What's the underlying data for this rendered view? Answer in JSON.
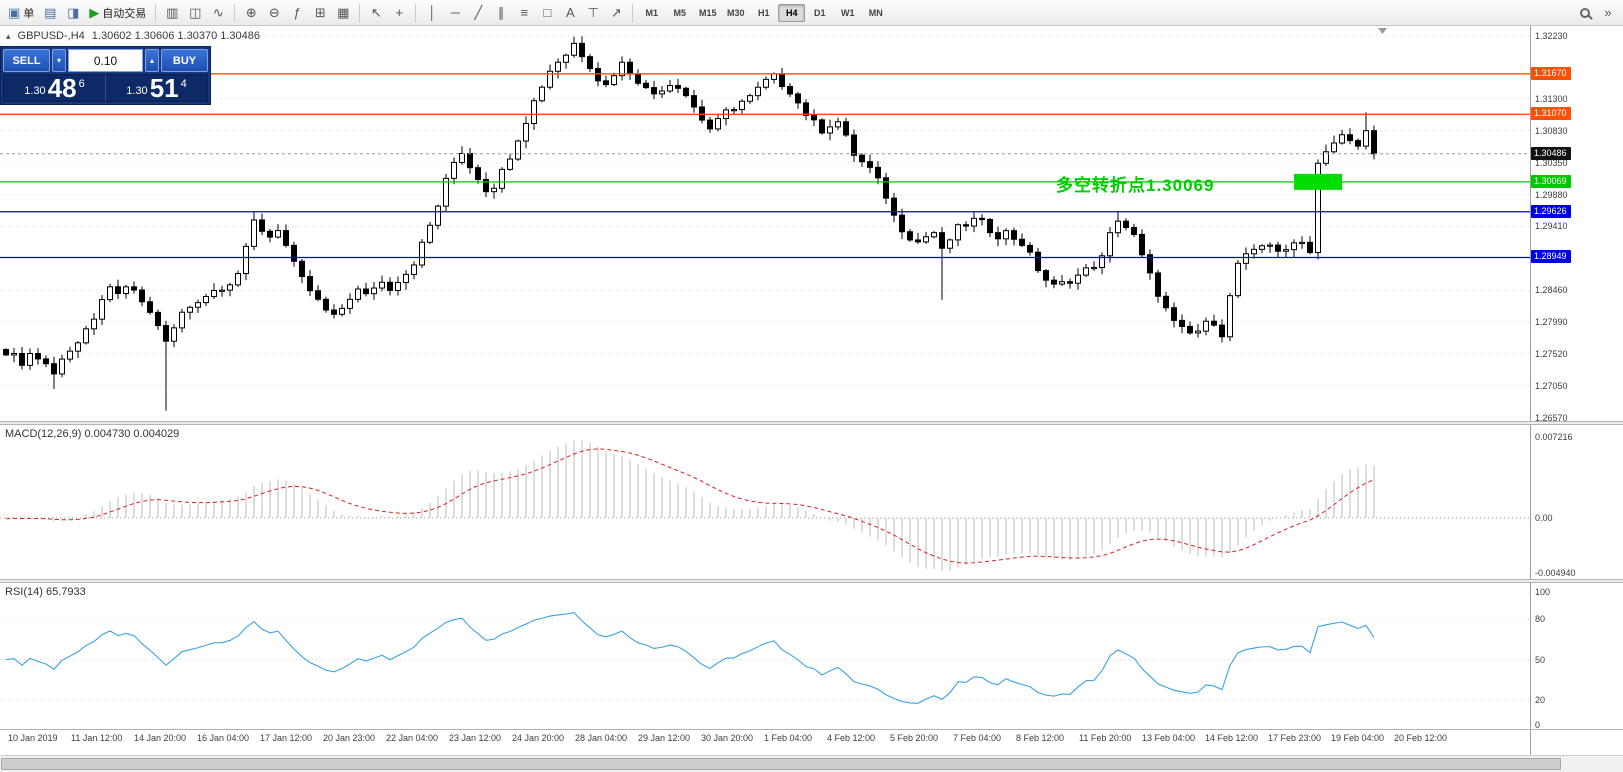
{
  "toolbar": {
    "new_order_label": "单",
    "autotrade_label": "自动交易",
    "timeframes": [
      "M1",
      "M5",
      "M15",
      "M30",
      "H1",
      "H4",
      "D1",
      "W1",
      "MN"
    ],
    "active_timeframe": "H4",
    "icons": {
      "context": "▴",
      "new_order": "▣",
      "charts": "▤",
      "profiles": "◨",
      "play": "▶",
      "bar_chart": "▥",
      "candlestick": "◫",
      "line_chart": "∿",
      "zoom_in": "⊕",
      "zoom_out": "⊖",
      "indicators": "ƒ",
      "grid": "⊞",
      "tile": "▦",
      "cursor": "↖",
      "crosshair": "+",
      "vline": "│",
      "hline": "─",
      "trendline": "╱",
      "channel": "∥",
      "fibonacci": "≡",
      "shapes": "□",
      "text": "A",
      "label": "⊤",
      "arrows": "↗",
      "combo_down": "▾",
      "spin_up": "▴",
      "nav": "»"
    }
  },
  "chart_header": {
    "symbol_period": "GBPUSD-,H4",
    "ohlc": "1.30602 1.30606 1.30370 1.30486"
  },
  "trade_panel": {
    "sell_label": "SELL",
    "buy_label": "BUY",
    "lot_size": "0.10",
    "sell_price_small": "1.30",
    "sell_price_big": "48",
    "sell_price_sup": "6",
    "buy_price_small": "1.30",
    "buy_price_big": "51",
    "buy_price_sup": "4"
  },
  "annotation": {
    "text": "多空转折点1.30069",
    "color": "#00CC00"
  },
  "price_axis": {
    "grid_labels": [
      "1.32230",
      "1.31300",
      "1.30830",
      "1.30350",
      "1.29880",
      "1.29410",
      "1.28460",
      "1.27990",
      "1.27520",
      "1.27050",
      "1.26570"
    ],
    "tags": [
      {
        "value": "1.31670",
        "price": 1.3167,
        "color": "#FF4F02",
        "name": "resistance-tag-1"
      },
      {
        "value": "1.31070",
        "price": 1.3107,
        "color": "#FF4F02",
        "name": "resistance-tag-2"
      },
      {
        "value": "1.30486",
        "price": 1.30486,
        "color": "#111111",
        "name": "bid-price-tag"
      },
      {
        "value": "1.30069",
        "price": 1.30069,
        "color": "#00C800",
        "name": "pivot-tag"
      },
      {
        "value": "1.29626",
        "price": 1.29626,
        "color": "#0000E0",
        "name": "support-tag-1"
      },
      {
        "value": "1.28949",
        "price": 1.28949,
        "color": "#0000E0",
        "name": "support-tag-2"
      }
    ]
  },
  "macd_panel": {
    "label": "MACD(12,26,9) 0.004730 0.004029",
    "axis": [
      "0.007216",
      "0.00",
      "-0.004940"
    ]
  },
  "rsi_panel": {
    "label": "RSI(14) 65.7933",
    "axis": [
      "100",
      "80",
      "50",
      "20",
      "0"
    ],
    "levels": [
      80,
      50,
      20
    ]
  },
  "time_axis": [
    "10 Jan 2019",
    "11 Jan 12:00",
    "14 Jan 20:00",
    "16 Jan 04:00",
    "17 Jan 12:00",
    "20 Jan 23:00",
    "22 Jan 04:00",
    "23 Jan 12:00",
    "24 Jan 20:00",
    "28 Jan 04:00",
    "29 Jan 12:00",
    "30 Jan 20:00",
    "1 Feb 04:00",
    "4 Feb 12:00",
    "5 Feb 20:00",
    "7 Feb 04:00",
    "8 Feb 12:00",
    "11 Feb 20:00",
    "13 Feb 04:00",
    "14 Feb 12:00",
    "17 Feb 23:00",
    "19 Feb 04:00",
    "20 Feb 12:00"
  ],
  "chart_data": {
    "type": "candlestick",
    "symbol": "GBPUSD",
    "timeframe": "H4",
    "bid": 1.30486,
    "ask": 1.30514,
    "price_range": [
      1.2657,
      1.3223
    ],
    "bars_total": 172,
    "closes": [
      1.2756,
      1.2748,
      1.274,
      1.2752,
      1.2746,
      1.2738,
      1.2721,
      1.2748,
      1.2758,
      1.2768,
      1.2784,
      1.28,
      1.2836,
      1.2846,
      1.2838,
      1.2852,
      1.2842,
      1.283,
      1.2812,
      1.2796,
      1.2768,
      1.279,
      1.2812,
      1.2822,
      1.2832,
      1.2839,
      1.2846,
      1.2852,
      1.2858,
      1.2872,
      1.2906,
      1.2948,
      1.2936,
      1.2926,
      1.2938,
      1.2912,
      1.2884,
      1.2862,
      1.2846,
      1.283,
      1.2816,
      1.2806,
      1.282,
      1.2836,
      1.2846,
      1.2838,
      1.2852,
      1.2858,
      1.285,
      1.2862,
      1.2872,
      1.2888,
      1.2914,
      1.2942,
      1.2972,
      1.3008,
      1.3036,
      1.3052,
      1.303,
      1.3014,
      1.2996,
      1.3002,
      1.3022,
      1.3046,
      1.3072,
      1.3098,
      1.3126,
      1.315,
      1.3172,
      1.3186,
      1.3196,
      1.3212,
      1.3196,
      1.318,
      1.316,
      1.315,
      1.3168,
      1.3182,
      1.317,
      1.3158,
      1.3144,
      1.3138,
      1.3146,
      1.3152,
      1.315,
      1.3136,
      1.3118,
      1.31,
      1.3086,
      1.3096,
      1.311,
      1.3118,
      1.3126,
      1.3132,
      1.3144,
      1.3156,
      1.3162,
      1.3152,
      1.3142,
      1.3124,
      1.3108,
      1.3094,
      1.3084,
      1.3092,
      1.3096,
      1.3072,
      1.3048,
      1.3036,
      1.3026,
      1.3008,
      1.2986,
      1.2956,
      1.2938,
      1.2926,
      1.2918,
      1.2926,
      1.2932,
      1.2904,
      1.2922,
      1.2938,
      1.2944,
      1.295,
      1.2946,
      1.2936,
      1.2928,
      1.2932,
      1.2924,
      1.2916,
      1.2898,
      1.2878,
      1.2862,
      1.2852,
      1.2856,
      1.2862,
      1.2868,
      1.2876,
      1.2884,
      1.2894,
      1.2928,
      1.2952,
      1.294,
      1.2926,
      1.2896,
      1.2868,
      1.2842,
      1.2818,
      1.2798,
      1.2788,
      1.2782,
      1.2786,
      1.2796,
      1.28,
      1.2782,
      1.2836,
      1.2886,
      1.2896,
      1.2902,
      1.2912,
      1.2916,
      1.2906,
      1.2902,
      1.2916,
      1.2922,
      1.2902,
      1.3038,
      1.3052,
      1.3062,
      1.3074,
      1.3068,
      1.3058,
      1.3088,
      1.30486
    ],
    "special_wicks": [
      {
        "bar": 6,
        "low": 1.27
      },
      {
        "bar": 20,
        "low": 1.2668
      },
      {
        "bar": 31,
        "high": 1.2963
      },
      {
        "bar": 71,
        "high": 1.3222
      },
      {
        "bar": 117,
        "low": 1.2832
      },
      {
        "bar": 139,
        "high": 1.2964
      },
      {
        "bar": 170,
        "high": 1.311
      }
    ],
    "hlines": [
      {
        "price": 1.3167,
        "color": "#FF4F02"
      },
      {
        "price": 1.3107,
        "color": "#FF4F02"
      },
      {
        "price": 1.30069,
        "color": "#00C800"
      },
      {
        "price": 1.29626,
        "color": "#0000E0"
      },
      {
        "price": 1.28949,
        "color": "#0000E0"
      }
    ],
    "green_zone": {
      "bar_start": 161,
      "bar_end": 167,
      "price": 1.30069
    },
    "indicators": [
      {
        "type": "MACD",
        "params": [
          12,
          26,
          9
        ],
        "values": [
          0.00473,
          0.004029
        ],
        "axis_range": [
          -0.00494,
          0.007216
        ]
      },
      {
        "type": "RSI",
        "params": [
          14
        ],
        "value": 65.7933,
        "axis_range": [
          0,
          100
        ],
        "levels": [
          80,
          50,
          20
        ]
      }
    ]
  }
}
